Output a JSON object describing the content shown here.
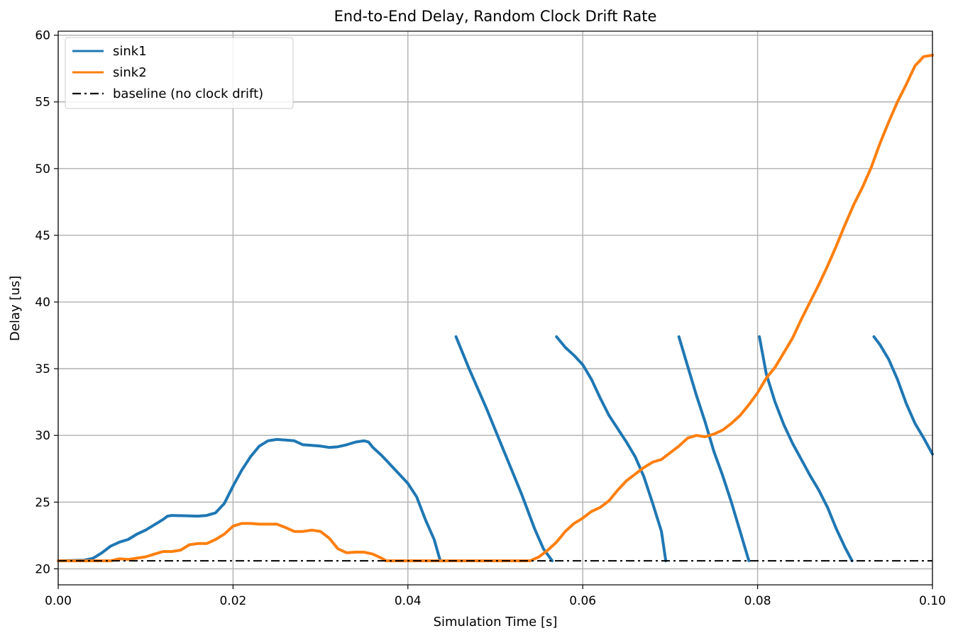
{
  "chart_data": {
    "type": "line",
    "title": "End-to-End Delay, Random Clock Drift Rate",
    "xlabel": "Simulation Time [s]",
    "ylabel": "Delay [us]",
    "xlim": [
      0,
      0.1
    ],
    "ylim": [
      18.8,
      60.3
    ],
    "grid": true,
    "legend_position": "top-left",
    "x_ticks": [
      {
        "value": 0.0,
        "label": "0.00"
      },
      {
        "value": 0.02,
        "label": "0.02"
      },
      {
        "value": 0.04,
        "label": "0.04"
      },
      {
        "value": 0.06,
        "label": "0.06"
      },
      {
        "value": 0.08,
        "label": "0.08"
      },
      {
        "value": 0.1,
        "label": "0.10"
      }
    ],
    "y_ticks": [
      {
        "value": 20,
        "label": "20"
      },
      {
        "value": 25,
        "label": "25"
      },
      {
        "value": 30,
        "label": "30"
      },
      {
        "value": 35,
        "label": "35"
      },
      {
        "value": 40,
        "label": "40"
      },
      {
        "value": 45,
        "label": "45"
      },
      {
        "value": 50,
        "label": "50"
      },
      {
        "value": 55,
        "label": "55"
      },
      {
        "value": 60,
        "label": "60"
      }
    ],
    "series": [
      {
        "name": "sink1",
        "color": "#1f77b4",
        "style": "solid",
        "segments": [
          [
            [
              0.0,
              20.6
            ],
            [
              0.003,
              20.65
            ],
            [
              0.004,
              20.8
            ],
            [
              0.005,
              21.2
            ],
            [
              0.006,
              21.7
            ],
            [
              0.007,
              22.0
            ],
            [
              0.008,
              22.2
            ],
            [
              0.009,
              22.6
            ],
            [
              0.01,
              22.9
            ],
            [
              0.011,
              23.3
            ],
            [
              0.012,
              23.7
            ],
            [
              0.0125,
              23.95
            ],
            [
              0.013,
              24.0
            ],
            [
              0.016,
              23.95
            ],
            [
              0.017,
              24.0
            ],
            [
              0.018,
              24.2
            ],
            [
              0.019,
              24.9
            ],
            [
              0.02,
              26.2
            ],
            [
              0.021,
              27.4
            ],
            [
              0.022,
              28.4
            ],
            [
              0.023,
              29.2
            ],
            [
              0.024,
              29.6
            ],
            [
              0.025,
              29.7
            ],
            [
              0.026,
              29.65
            ],
            [
              0.027,
              29.6
            ],
            [
              0.028,
              29.3
            ],
            [
              0.029,
              29.25
            ],
            [
              0.03,
              29.2
            ],
            [
              0.031,
              29.1
            ],
            [
              0.032,
              29.15
            ],
            [
              0.033,
              29.3
            ],
            [
              0.034,
              29.5
            ],
            [
              0.035,
              29.6
            ],
            [
              0.0355,
              29.5
            ],
            [
              0.036,
              29.1
            ],
            [
              0.037,
              28.5
            ],
            [
              0.038,
              27.8
            ],
            [
              0.039,
              27.1
            ],
            [
              0.04,
              26.4
            ],
            [
              0.041,
              25.4
            ],
            [
              0.042,
              23.7
            ],
            [
              0.043,
              22.2
            ],
            [
              0.0437,
              20.6
            ]
          ],
          [
            [
              0.0455,
              37.4
            ],
            [
              0.047,
              35.0
            ],
            [
              0.049,
              32.0
            ],
            [
              0.051,
              28.8
            ],
            [
              0.053,
              25.6
            ],
            [
              0.0545,
              23.0
            ],
            [
              0.0555,
              21.5
            ],
            [
              0.0565,
              20.6
            ]
          ],
          [
            [
              0.057,
              37.4
            ],
            [
              0.058,
              36.6
            ],
            [
              0.059,
              36.0
            ],
            [
              0.06,
              35.3
            ],
            [
              0.061,
              34.2
            ],
            [
              0.062,
              32.8
            ],
            [
              0.063,
              31.5
            ],
            [
              0.064,
              30.5
            ],
            [
              0.065,
              29.5
            ],
            [
              0.066,
              28.4
            ],
            [
              0.067,
              26.9
            ],
            [
              0.068,
              24.9
            ],
            [
              0.069,
              22.8
            ],
            [
              0.0695,
              20.6
            ]
          ],
          [
            [
              0.071,
              37.4
            ],
            [
              0.072,
              35.2
            ],
            [
              0.073,
              33.0
            ],
            [
              0.074,
              31.0
            ],
            [
              0.075,
              28.8
            ],
            [
              0.076,
              27.0
            ],
            [
              0.077,
              25.0
            ],
            [
              0.078,
              22.8
            ],
            [
              0.079,
              20.6
            ]
          ],
          [
            [
              0.0802,
              37.4
            ],
            [
              0.081,
              34.6
            ],
            [
              0.082,
              32.5
            ],
            [
              0.083,
              30.8
            ],
            [
              0.084,
              29.4
            ],
            [
              0.085,
              28.2
            ],
            [
              0.086,
              27.0
            ],
            [
              0.087,
              25.9
            ],
            [
              0.088,
              24.6
            ],
            [
              0.089,
              23.0
            ],
            [
              0.09,
              21.6
            ],
            [
              0.0908,
              20.6
            ]
          ],
          [
            [
              0.0933,
              37.4
            ],
            [
              0.094,
              36.8
            ],
            [
              0.095,
              35.7
            ],
            [
              0.096,
              34.2
            ],
            [
              0.097,
              32.4
            ],
            [
              0.098,
              30.9
            ],
            [
              0.099,
              29.8
            ],
            [
              0.1,
              28.6
            ]
          ]
        ]
      },
      {
        "name": "sink2",
        "color": "#ff7f0e",
        "style": "solid",
        "segments": [
          [
            [
              0.0,
              20.6
            ],
            [
              0.006,
              20.6
            ],
            [
              0.007,
              20.75
            ],
            [
              0.008,
              20.7
            ],
            [
              0.009,
              20.8
            ],
            [
              0.01,
              20.9
            ],
            [
              0.011,
              21.1
            ],
            [
              0.012,
              21.3
            ],
            [
              0.013,
              21.3
            ],
            [
              0.014,
              21.4
            ],
            [
              0.015,
              21.8
            ],
            [
              0.016,
              21.9
            ],
            [
              0.017,
              21.9
            ],
            [
              0.018,
              22.2
            ],
            [
              0.019,
              22.6
            ],
            [
              0.02,
              23.2
            ],
            [
              0.021,
              23.4
            ],
            [
              0.022,
              23.4
            ],
            [
              0.023,
              23.35
            ],
            [
              0.024,
              23.35
            ],
            [
              0.025,
              23.35
            ],
            [
              0.026,
              23.1
            ],
            [
              0.027,
              22.8
            ],
            [
              0.028,
              22.8
            ],
            [
              0.029,
              22.9
            ],
            [
              0.03,
              22.8
            ],
            [
              0.031,
              22.3
            ],
            [
              0.032,
              21.5
            ],
            [
              0.033,
              21.2
            ],
            [
              0.034,
              21.25
            ],
            [
              0.035,
              21.25
            ],
            [
              0.036,
              21.1
            ],
            [
              0.037,
              20.8
            ],
            [
              0.0375,
              20.6
            ],
            [
              0.054,
              20.6
            ],
            [
              0.055,
              20.9
            ],
            [
              0.056,
              21.4
            ],
            [
              0.057,
              22.0
            ],
            [
              0.058,
              22.8
            ],
            [
              0.059,
              23.4
            ],
            [
              0.06,
              23.8
            ],
            [
              0.061,
              24.3
            ],
            [
              0.062,
              24.6
            ],
            [
              0.063,
              25.1
            ],
            [
              0.064,
              25.9
            ],
            [
              0.065,
              26.6
            ],
            [
              0.066,
              27.1
            ],
            [
              0.067,
              27.6
            ],
            [
              0.068,
              28.0
            ],
            [
              0.069,
              28.2
            ],
            [
              0.07,
              28.7
            ],
            [
              0.071,
              29.2
            ],
            [
              0.072,
              29.8
            ],
            [
              0.073,
              30.0
            ],
            [
              0.074,
              29.9
            ],
            [
              0.075,
              30.1
            ],
            [
              0.076,
              30.4
            ],
            [
              0.077,
              30.9
            ],
            [
              0.078,
              31.5
            ],
            [
              0.079,
              32.3
            ],
            [
              0.08,
              33.2
            ],
            [
              0.081,
              34.3
            ],
            [
              0.082,
              35.1
            ],
            [
              0.083,
              36.2
            ],
            [
              0.084,
              37.3
            ],
            [
              0.085,
              38.7
            ],
            [
              0.086,
              40.0
            ],
            [
              0.087,
              41.3
            ],
            [
              0.088,
              42.7
            ],
            [
              0.089,
              44.2
            ],
            [
              0.09,
              45.8
            ],
            [
              0.091,
              47.3
            ],
            [
              0.092,
              48.6
            ],
            [
              0.093,
              50.1
            ],
            [
              0.094,
              51.9
            ],
            [
              0.095,
              53.5
            ],
            [
              0.096,
              55.0
            ],
            [
              0.097,
              56.3
            ],
            [
              0.098,
              57.7
            ],
            [
              0.099,
              58.4
            ],
            [
              0.1,
              58.5
            ]
          ]
        ]
      },
      {
        "name": "baseline (no clock drift)",
        "color": "#000000",
        "style": "dashdot",
        "segments": [
          [
            [
              0.0,
              20.6
            ],
            [
              0.1,
              20.6
            ]
          ]
        ]
      }
    ]
  }
}
